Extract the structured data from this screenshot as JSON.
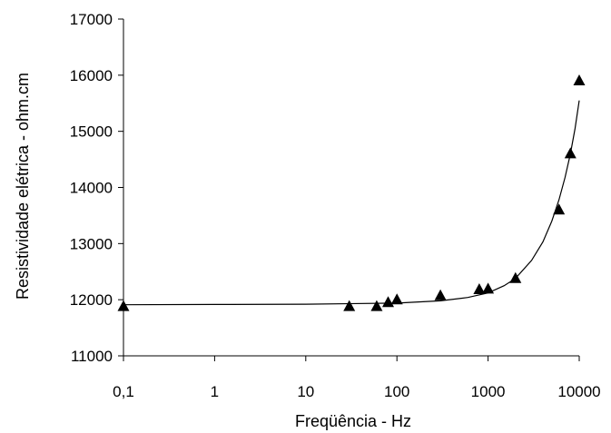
{
  "chart_data": {
    "type": "scatter",
    "xscale": "log",
    "xlabel": "Freqüência - Hz",
    "ylabel": "Resistividade elétrica - ohm.cm",
    "xlim": [
      0.1,
      10000
    ],
    "ylim": [
      11000,
      17000
    ],
    "x_ticks": [
      0.1,
      1,
      10,
      100,
      1000,
      10000
    ],
    "x_tick_labels": [
      "0,1",
      "1",
      "10",
      "100",
      "1000",
      "10000"
    ],
    "y_ticks": [
      11000,
      12000,
      13000,
      14000,
      15000,
      16000,
      17000
    ],
    "y_tick_labels": [
      "11000",
      "12000",
      "13000",
      "14000",
      "15000",
      "16000",
      "17000"
    ],
    "grid": false,
    "legend": "none",
    "marker": "triangle",
    "series": [
      {
        "x": [
          0.1,
          30,
          60,
          80,
          100,
          300,
          800,
          1000,
          2000,
          6000,
          8000,
          10000
        ],
        "y": [
          11880,
          11880,
          11880,
          11950,
          12000,
          12070,
          12180,
          12190,
          12380,
          13600,
          14600,
          15900
        ]
      }
    ],
    "trend_line": {
      "x": [
        0.1,
        1,
        10,
        100,
        300,
        600,
        1000,
        1500,
        2000,
        3000,
        4000,
        5000,
        6000,
        7000,
        8000,
        9000,
        10000
      ],
      "y": [
        11910,
        11915,
        11920,
        11940,
        11980,
        12040,
        12120,
        12250,
        12380,
        12700,
        13030,
        13400,
        13780,
        14180,
        14600,
        15050,
        15550
      ]
    },
    "colors": {
      "marker": "#000000",
      "line": "#000000",
      "axis": "#000000"
    }
  }
}
